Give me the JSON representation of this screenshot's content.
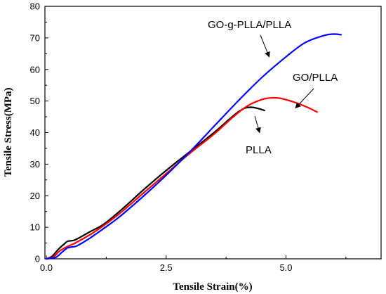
{
  "chart_data": {
    "type": "line",
    "xlabel": "Tensile Strain(%)",
    "ylabel": "Tensile Stress(MPa)",
    "xlim": [
      0,
      7
    ],
    "ylim": [
      0,
      80
    ],
    "x_ticks": [
      "0.0",
      "2.5",
      "5.0"
    ],
    "y_ticks": [
      "0",
      "10",
      "20",
      "30",
      "40",
      "50",
      "60",
      "70",
      "80"
    ],
    "grid": false,
    "series": [
      {
        "name": "PLLA",
        "color": "#000000",
        "points": [
          [
            0.0,
            0.0
          ],
          [
            0.12,
            0.8
          ],
          [
            0.25,
            3.0
          ],
          [
            0.38,
            4.8
          ],
          [
            0.45,
            5.6
          ],
          [
            0.6,
            6.0
          ],
          [
            0.9,
            8.5
          ],
          [
            1.2,
            11.0
          ],
          [
            1.6,
            16.0
          ],
          [
            2.0,
            21.5
          ],
          [
            2.5,
            28.0
          ],
          [
            3.0,
            34.0
          ],
          [
            3.5,
            40.0
          ],
          [
            3.8,
            44.0
          ],
          [
            4.0,
            46.5
          ],
          [
            4.15,
            47.8
          ],
          [
            4.3,
            48.0
          ],
          [
            4.45,
            47.5
          ],
          [
            4.55,
            47.0
          ]
        ]
      },
      {
        "name": "GO/PLLA",
        "color": "#ff0000",
        "points": [
          [
            0.0,
            0.0
          ],
          [
            0.15,
            0.6
          ],
          [
            0.28,
            2.5
          ],
          [
            0.45,
            4.0
          ],
          [
            0.6,
            5.0
          ],
          [
            1.0,
            8.5
          ],
          [
            1.5,
            14.0
          ],
          [
            2.0,
            20.5
          ],
          [
            2.5,
            27.0
          ],
          [
            3.0,
            33.5
          ],
          [
            3.5,
            39.5
          ],
          [
            3.9,
            45.0
          ],
          [
            4.2,
            48.5
          ],
          [
            4.5,
            50.5
          ],
          [
            4.7,
            51.0
          ],
          [
            4.9,
            50.8
          ],
          [
            5.2,
            49.5
          ],
          [
            5.45,
            48.0
          ],
          [
            5.65,
            46.5
          ]
        ]
      },
      {
        "name": "GO-g-PLLA/PLLA",
        "color": "#0000ff",
        "points": [
          [
            0.0,
            0.0
          ],
          [
            0.2,
            0.5
          ],
          [
            0.32,
            2.0
          ],
          [
            0.45,
            3.5
          ],
          [
            0.62,
            4.0
          ],
          [
            0.8,
            5.5
          ],
          [
            1.0,
            7.5
          ],
          [
            1.5,
            13.0
          ],
          [
            2.0,
            19.5
          ],
          [
            2.5,
            26.5
          ],
          [
            3.0,
            34.0
          ],
          [
            3.5,
            42.0
          ],
          [
            4.0,
            50.0
          ],
          [
            4.5,
            57.5
          ],
          [
            5.0,
            64.0
          ],
          [
            5.4,
            68.5
          ],
          [
            5.8,
            70.8
          ],
          [
            6.0,
            71.2
          ],
          [
            6.15,
            71.0
          ]
        ]
      }
    ],
    "annotations": [
      {
        "text": "GO-g-PLLA/PLLA",
        "target": [
          4.65,
          64.0
        ]
      },
      {
        "text": "GO/PLLA",
        "target": [
          5.2,
          47.8
        ]
      },
      {
        "text": "PLLA",
        "target": [
          4.45,
          40.0
        ]
      }
    ]
  }
}
